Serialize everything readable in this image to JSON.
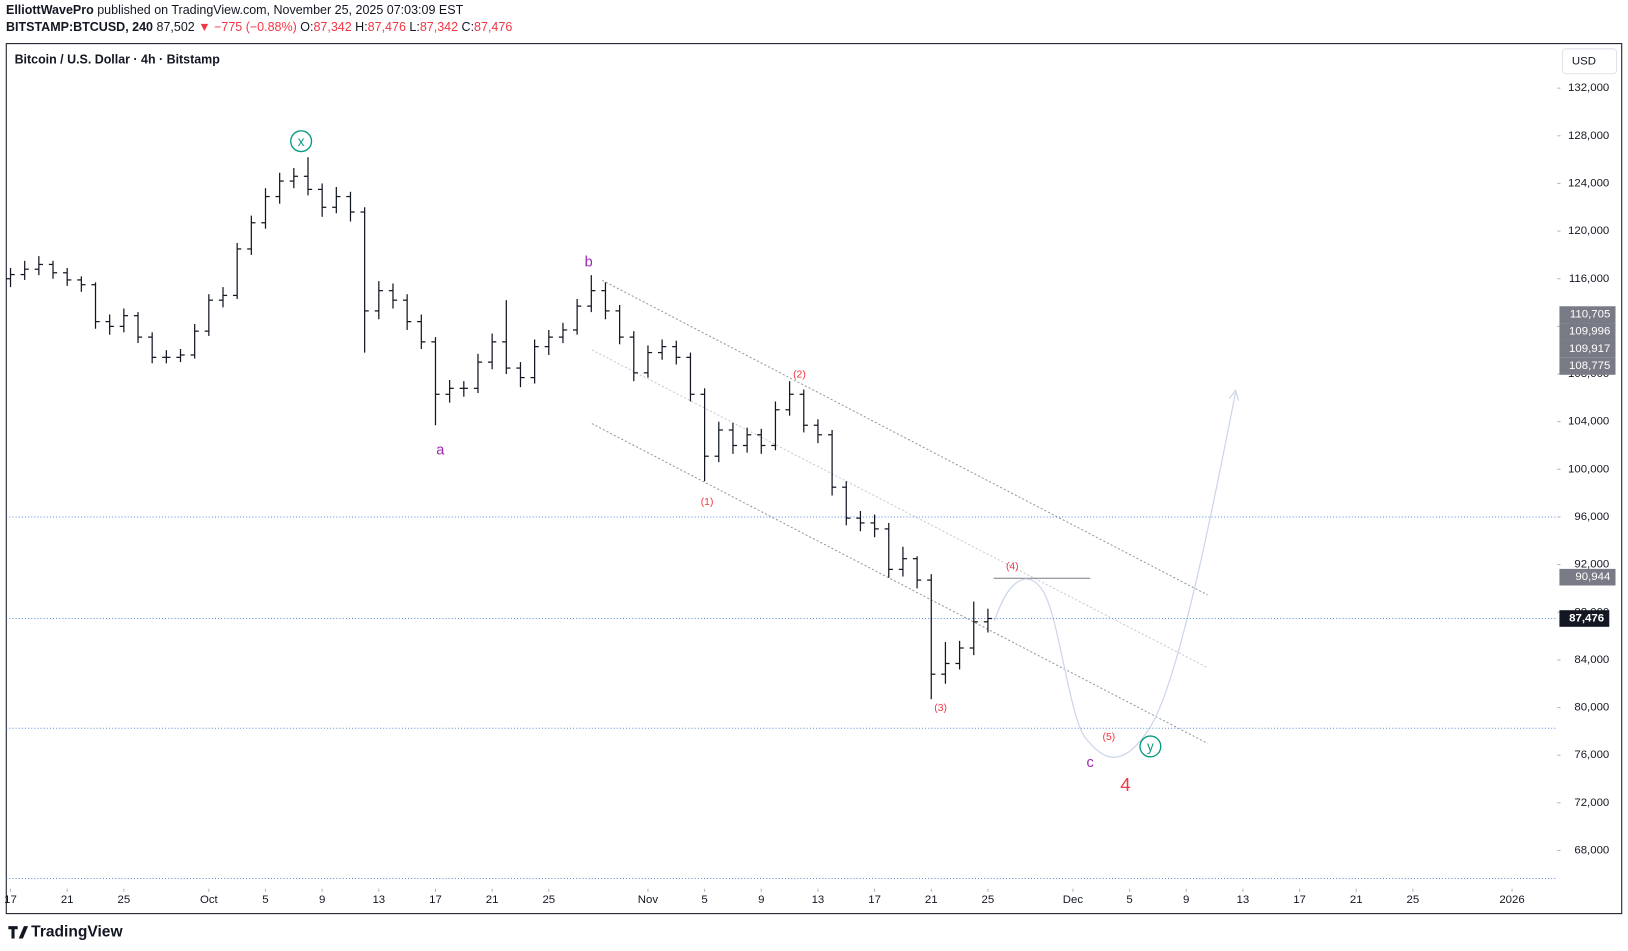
{
  "header": {
    "publisher": "ElliottWavePro",
    "published": "published on TradingView.com, November 25, 2025 07:03:09 EST",
    "symbol": "BITSTAMP:BTCUSD, 240",
    "last": "87,502",
    "change": "▼ −775 (−0.88%)",
    "o_label": "O:",
    "o": "87,342",
    "h_label": "H:",
    "h": "87,476",
    "l_label": "L:",
    "l": "87,342",
    "c_label": "C:",
    "c": "87,476"
  },
  "chart_data": {
    "type": "ohlc",
    "title": "Bitcoin / U.S. Dollar · 4h · Bitstamp",
    "currency": "USD",
    "x": [
      0,
      1,
      2,
      3,
      4,
      5,
      6,
      7,
      8,
      9,
      10,
      11,
      12,
      13,
      14,
      15,
      16,
      17,
      18,
      19,
      20,
      21,
      22,
      23,
      24,
      25,
      26,
      27,
      28,
      29,
      30,
      31,
      32,
      33,
      34,
      35,
      36,
      37,
      38,
      39,
      40,
      41,
      42,
      43,
      44,
      45,
      46,
      47,
      48,
      49,
      50,
      51,
      52,
      53,
      54,
      55,
      56,
      57,
      58,
      59,
      60,
      61,
      62,
      63,
      64,
      65,
      66,
      67,
      68,
      69
    ],
    "ohlc": [
      [
        116000,
        116900,
        115300,
        116350
      ],
      [
        116350,
        117500,
        115900,
        116800
      ],
      [
        116800,
        117900,
        116300,
        117200
      ],
      [
        117200,
        117500,
        116000,
        116500
      ],
      [
        116500,
        116900,
        115400,
        115900
      ],
      [
        115900,
        116200,
        114900,
        115500
      ],
      [
        115500,
        115700,
        111800,
        112400
      ],
      [
        112400,
        113000,
        111300,
        112000
      ],
      [
        112000,
        113500,
        111500,
        112900
      ],
      [
        112900,
        113200,
        110600,
        111100
      ],
      [
        111100,
        111500,
        108900,
        109400
      ],
      [
        109400,
        110000,
        108900,
        109400
      ],
      [
        109400,
        110100,
        109000,
        109600
      ],
      [
        109600,
        112200,
        109300,
        111600
      ],
      [
        111600,
        114700,
        111200,
        114200
      ],
      [
        114200,
        115300,
        113600,
        114600
      ],
      [
        114600,
        119000,
        114300,
        118500
      ],
      [
        118500,
        121300,
        118000,
        120700
      ],
      [
        120700,
        123600,
        120200,
        122900
      ],
      [
        122900,
        124900,
        122300,
        124200
      ],
      [
        124200,
        125300,
        123600,
        124600
      ],
      [
        124600,
        126200,
        123000,
        123500
      ],
      [
        123500,
        124000,
        121200,
        122000
      ],
      [
        122000,
        123700,
        121500,
        122900
      ],
      [
        122900,
        123300,
        120800,
        121600
      ],
      [
        121600,
        122000,
        109800,
        113300
      ],
      [
        113300,
        115800,
        112600,
        115000
      ],
      [
        115000,
        115600,
        113500,
        114200
      ],
      [
        114200,
        114700,
        111700,
        112400
      ],
      [
        112400,
        113000,
        110100,
        110700
      ],
      [
        110700,
        111100,
        103700,
        106300
      ],
      [
        106300,
        107500,
        105600,
        106800
      ],
      [
        106800,
        107400,
        106100,
        106800
      ],
      [
        106800,
        109700,
        106400,
        109000
      ],
      [
        109000,
        111400,
        108400,
        110700
      ],
      [
        110700,
        114200,
        108000,
        108500
      ],
      [
        108500,
        109000,
        106900,
        107700
      ],
      [
        107700,
        110900,
        107200,
        110300
      ],
      [
        110300,
        111700,
        109600,
        111100
      ],
      [
        111100,
        112300,
        110600,
        111700
      ],
      [
        111700,
        114300,
        111300,
        113700
      ],
      [
        113700,
        116300,
        113200,
        115000
      ],
      [
        115000,
        115700,
        112600,
        113300
      ],
      [
        113300,
        113800,
        110500,
        111100
      ],
      [
        111100,
        111600,
        107400,
        108100
      ],
      [
        108100,
        110400,
        107700,
        109800
      ],
      [
        109800,
        110900,
        109200,
        110300
      ],
      [
        110300,
        110800,
        108800,
        109400
      ],
      [
        109400,
        109800,
        105700,
        106300
      ],
      [
        106300,
        106800,
        99000,
        101100
      ],
      [
        101100,
        104000,
        100600,
        103300
      ],
      [
        103300,
        103900,
        101300,
        102000
      ],
      [
        102000,
        103500,
        101400,
        102900
      ],
      [
        102900,
        103400,
        101300,
        102000
      ],
      [
        102000,
        105700,
        101600,
        105000
      ],
      [
        105000,
        107400,
        104500,
        106300
      ],
      [
        106300,
        106700,
        103100,
        103700
      ],
      [
        103700,
        104200,
        102200,
        102900
      ],
      [
        102900,
        103300,
        97800,
        98500
      ],
      [
        98500,
        99000,
        95300,
        95900
      ],
      [
        95900,
        96500,
        94800,
        95500
      ],
      [
        95500,
        96200,
        94300,
        95000
      ],
      [
        95000,
        95500,
        90900,
        91600
      ],
      [
        91600,
        93500,
        91000,
        92500
      ],
      [
        92500,
        92700,
        90000,
        90700
      ],
      [
        90700,
        91200,
        80700,
        82800
      ],
      [
        82800,
        85500,
        82000,
        83700
      ],
      [
        83700,
        85600,
        83200,
        85000
      ],
      [
        85000,
        88900,
        84400,
        87200
      ],
      [
        87200,
        88300,
        86300,
        87476
      ]
    ],
    "xlim": [
      -0.3,
      109.2
    ],
    "xticks": [
      {
        "value": 0,
        "label": "17"
      },
      {
        "value": 4,
        "label": "21"
      },
      {
        "value": 8,
        "label": "25"
      },
      {
        "value": 14,
        "label": "Oct"
      },
      {
        "value": 18,
        "label": "5"
      },
      {
        "value": 22,
        "label": "9"
      },
      {
        "value": 26,
        "label": "13"
      },
      {
        "value": 30,
        "label": "17"
      },
      {
        "value": 34,
        "label": "21"
      },
      {
        "value": 38,
        "label": "25"
      },
      {
        "value": 45,
        "label": "Nov"
      },
      {
        "value": 49,
        "label": "5"
      },
      {
        "value": 53,
        "label": "9"
      },
      {
        "value": 57,
        "label": "13"
      },
      {
        "value": 61,
        "label": "17"
      },
      {
        "value": 65,
        "label": "21"
      },
      {
        "value": 69,
        "label": "25"
      },
      {
        "value": 75,
        "label": "Dec"
      },
      {
        "value": 79,
        "label": "5"
      },
      {
        "value": 83,
        "label": "9"
      },
      {
        "value": 87,
        "label": "13"
      },
      {
        "value": 91,
        "label": "17"
      },
      {
        "value": 95,
        "label": "21"
      },
      {
        "value": 99,
        "label": "25"
      },
      {
        "value": 106,
        "label": "2026"
      }
    ],
    "ylim": [
      62700,
      135740
    ],
    "yticks": [
      {
        "value": 68000,
        "label": "68,000"
      },
      {
        "value": 72000,
        "label": "72,000"
      },
      {
        "value": 76000,
        "label": "76,000"
      },
      {
        "value": 80000,
        "label": "80,000"
      },
      {
        "value": 84000,
        "label": "84,000"
      },
      {
        "value": 88000,
        "label": "88,000"
      },
      {
        "value": 92000,
        "label": "92,000"
      },
      {
        "value": 96000,
        "label": "96,000"
      },
      {
        "value": 100000,
        "label": "100,000"
      },
      {
        "value": 104000,
        "label": "104,000"
      },
      {
        "value": 108000,
        "label": "108,000"
      },
      {
        "value": 112000,
        "label": "112,000"
      },
      {
        "value": 116000,
        "label": "116,000"
      },
      {
        "value": 120000,
        "label": "120,000"
      },
      {
        "value": 124000,
        "label": "124,000"
      },
      {
        "value": 128000,
        "label": "128,000"
      },
      {
        "value": 132000,
        "label": "132,000"
      }
    ],
    "levels": [
      96000,
      78260,
      65650
    ],
    "price_line": {
      "value": 87476,
      "label": "87,476"
    },
    "target_tag": {
      "value": 90944,
      "label": "90,944"
    },
    "price_tags": [
      "110,705",
      "109,996",
      "109,917",
      "108,775"
    ],
    "annotations": [
      "x",
      "b",
      "a",
      "(1)",
      "(2)",
      "(3)",
      "(4)",
      "(5)",
      "c",
      "y",
      "4"
    ]
  },
  "footer": {
    "brand": "TradingView"
  }
}
